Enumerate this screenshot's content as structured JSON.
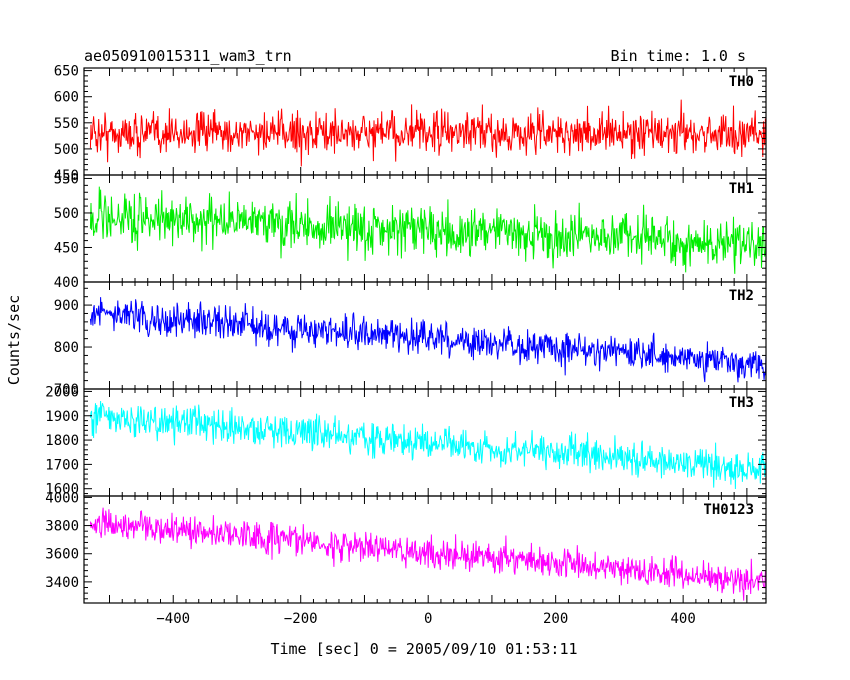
{
  "chart_data": [
    {
      "type": "line",
      "title": "ae050910015311_wam3_trn",
      "subtitle": "Bin time: 1.0 s",
      "ylabel": "Counts/sec",
      "xlabel": "Time [sec] 0 = 2005/09/10 01:53:11",
      "xlim": [
        -540,
        530
      ],
      "grid": false,
      "x_ticks": [
        -400,
        -200,
        0,
        200,
        400
      ],
      "x_tick_labels": [
        "−400",
        "−200",
        "0",
        "200",
        "400"
      ],
      "panels": [
        {
          "name": "TH0",
          "color": "#ff0000",
          "ylim": [
            450,
            655
          ],
          "y_ticks": [
            450,
            500,
            550,
            600,
            650
          ],
          "y_tick_labels": [
            "450",
            "500",
            "550",
            "600",
            "650"
          ],
          "series": [
            {
              "x": [
                -530,
                530
              ],
              "mean": [
                530,
                530
              ],
              "noise_sd": 28
            }
          ]
        },
        {
          "name": "TH1",
          "color": "#00ee00",
          "ylim": [
            400,
            555
          ],
          "y_ticks": [
            400,
            450,
            500,
            550
          ],
          "y_tick_labels": [
            "400",
            "450",
            "500",
            "550"
          ],
          "series": [
            {
              "x": [
                -530,
                530
              ],
              "mean": [
                495,
                455
              ],
              "noise_sd": 24
            }
          ]
        },
        {
          "name": "TH2",
          "color": "#0000ff",
          "ylim": [
            700,
            955
          ],
          "y_ticks": [
            700,
            800,
            900
          ],
          "y_tick_labels": [
            "700",
            "800",
            "900"
          ],
          "series": [
            {
              "x": [
                -530,
                530
              ],
              "mean": [
                880,
                760
              ],
              "noise_sd": 28
            }
          ]
        },
        {
          "name": "TH3",
          "color": "#00ffff",
          "ylim": [
            1570,
            2010
          ],
          "y_ticks": [
            1600,
            1700,
            1800,
            1900,
            2000
          ],
          "y_tick_labels": [
            "1600",
            "1700",
            "1800",
            "1900",
            "2000"
          ],
          "series": [
            {
              "x": [
                -530,
                530
              ],
              "mean": [
                1900,
                1680
              ],
              "noise_sd": 50
            }
          ]
        },
        {
          "name": "TH0123",
          "color": "#ff00ff",
          "ylim": [
            3250,
            4010
          ],
          "y_ticks": [
            3400,
            3600,
            3800,
            4000
          ],
          "y_tick_labels": [
            "3400",
            "3600",
            "3800",
            "4000"
          ],
          "series": [
            {
              "x": [
                -530,
                530
              ],
              "mean": [
                3820,
                3400
              ],
              "noise_sd": 75
            }
          ]
        }
      ]
    }
  ]
}
